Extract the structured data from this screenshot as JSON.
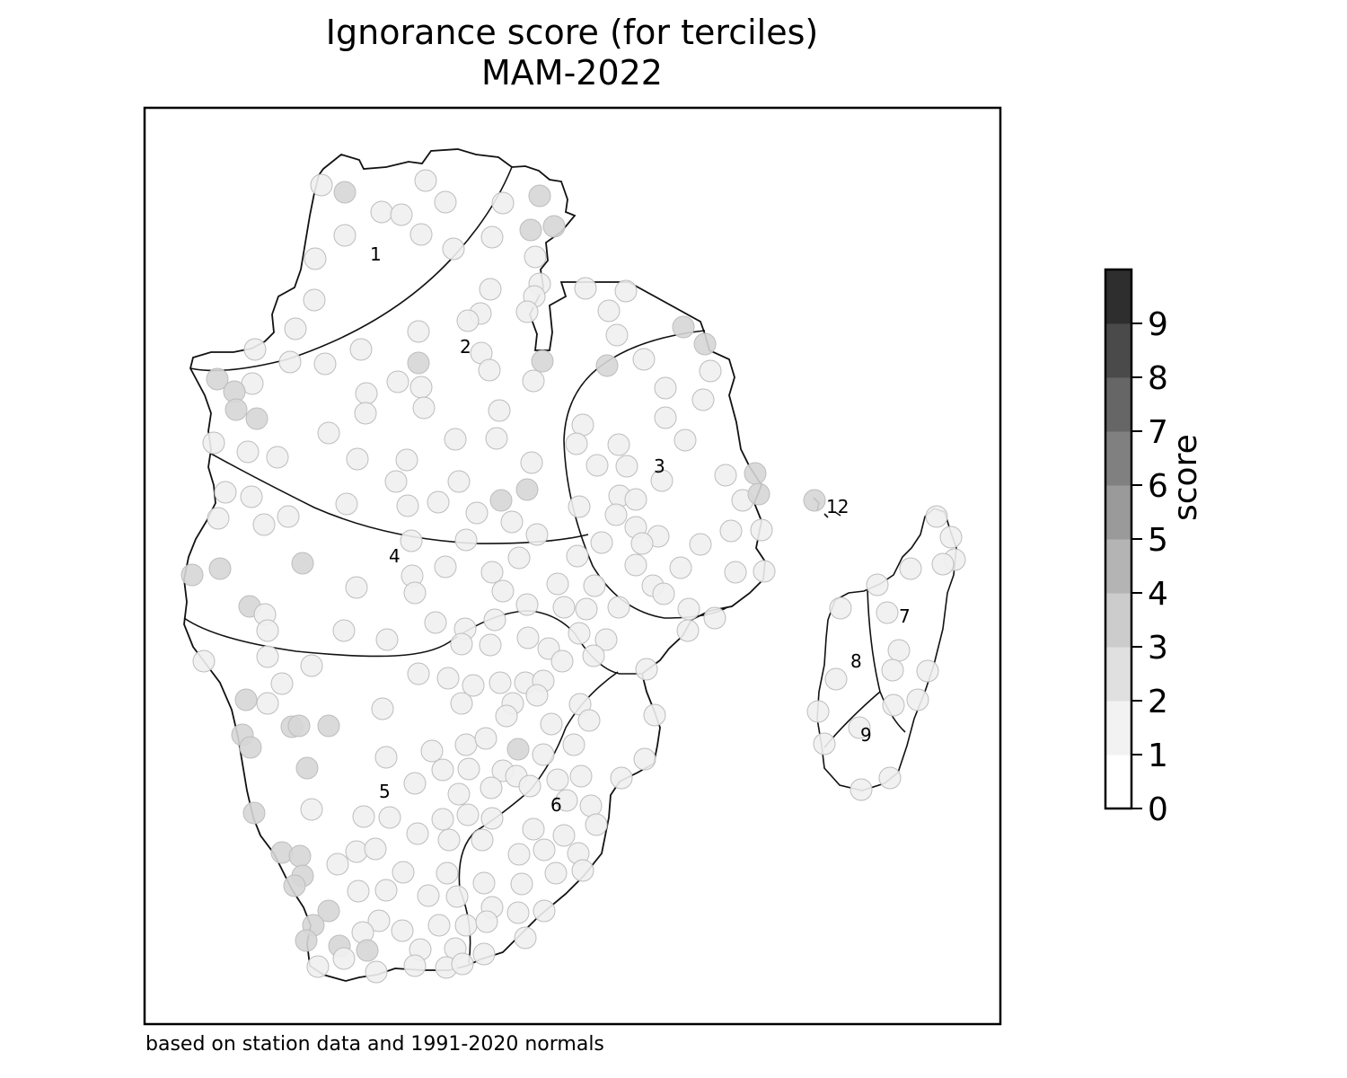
{
  "title_line1": "Ignorance score (for terciles)",
  "title_line2": "MAM-2022",
  "footnote": "based on station data and 1991-2020 normals",
  "colorbar": {
    "label": "score",
    "ticks": [
      "0",
      "1",
      "2",
      "3",
      "4",
      "5",
      "6",
      "7",
      "8",
      "9"
    ],
    "colors": [
      "#ffffff",
      "#f2f2f2",
      "#e0e0e0",
      "#cccccc",
      "#b4b4b4",
      "#9a9a9a",
      "#808080",
      "#666666",
      "#4a4a4a",
      "#2e2e2e",
      "#1a1a1a"
    ]
  },
  "regions": [
    {
      "id": "1",
      "label": "1"
    },
    {
      "id": "2",
      "label": "2"
    },
    {
      "id": "3",
      "label": "3"
    },
    {
      "id": "4",
      "label": "4"
    },
    {
      "id": "5",
      "label": "5"
    },
    {
      "id": "6",
      "label": "6"
    },
    {
      "id": "7",
      "label": "7"
    },
    {
      "id": "8",
      "label": "8"
    },
    {
      "id": "9",
      "label": "9"
    },
    {
      "id": "12",
      "label": "12"
    }
  ],
  "colors": {
    "coast": "#111111",
    "station_edge": "#bdbdbd",
    "station_light": "#f0f0f0",
    "station_mid": "#d6d6d6",
    "station_dark": "#c0c0c0"
  }
}
